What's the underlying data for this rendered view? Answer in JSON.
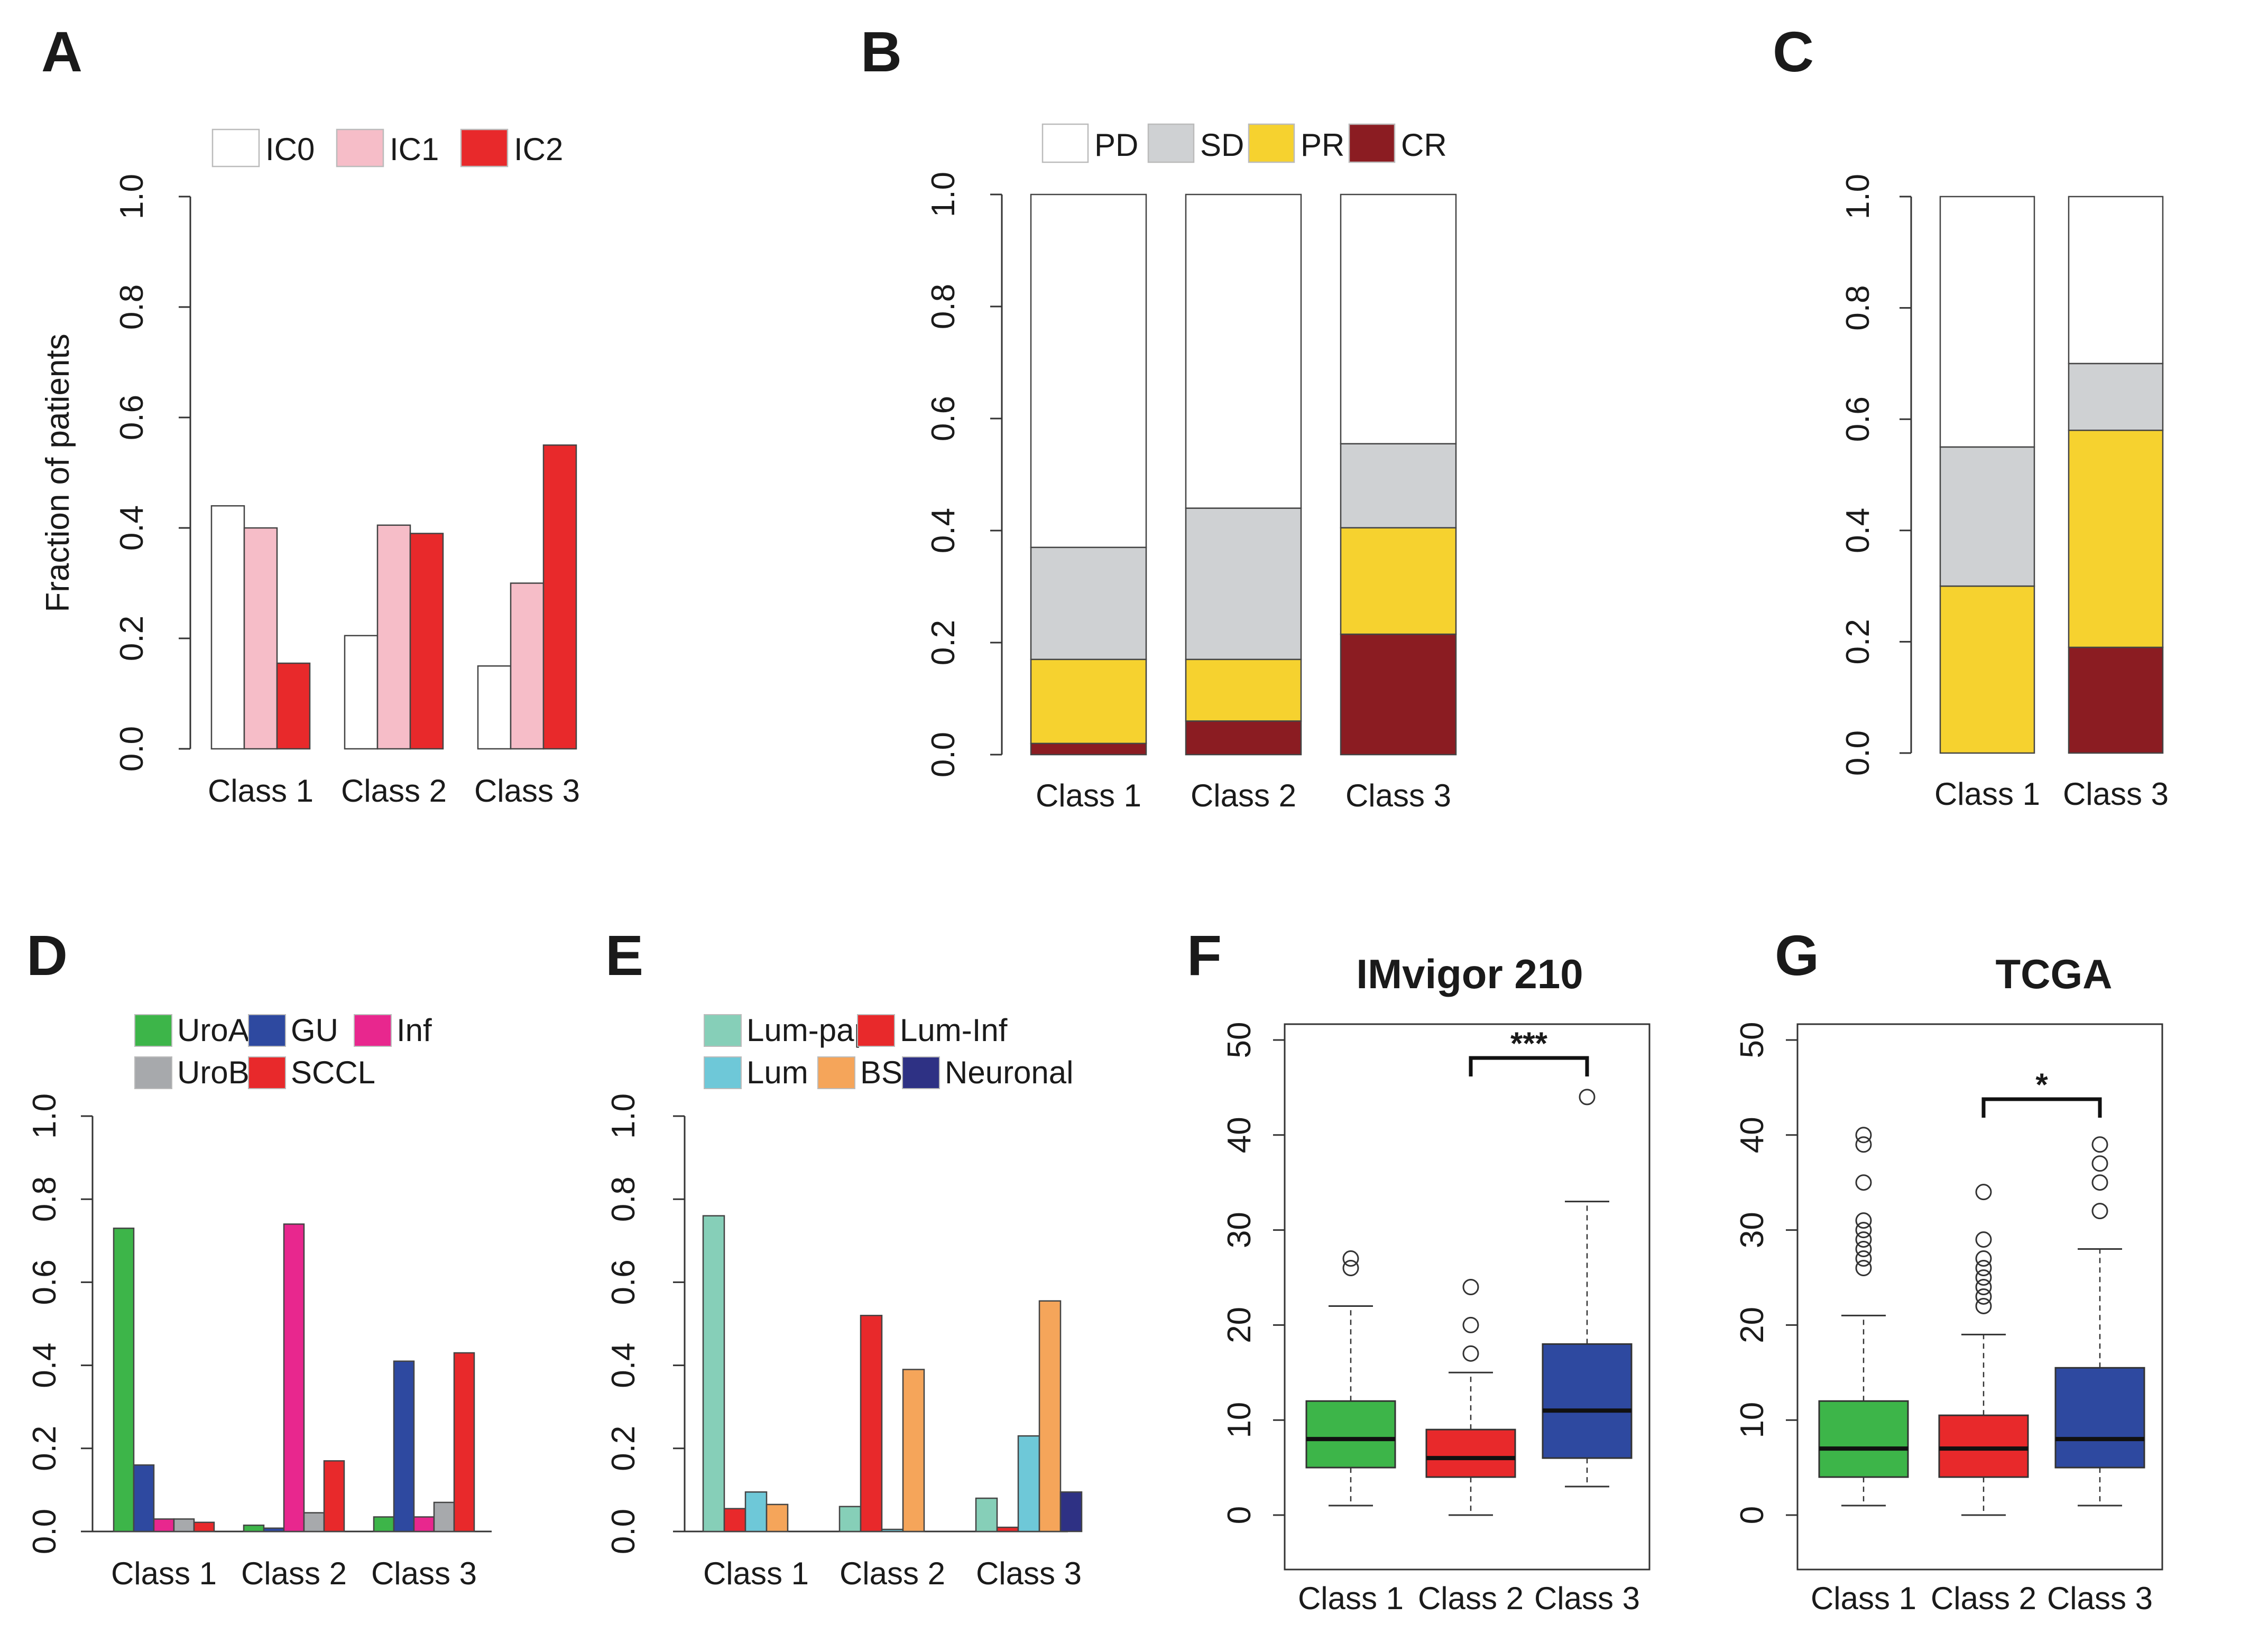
{
  "colors": {
    "IC0": "#ffffff",
    "IC1": "#f6bdc8",
    "IC2": "#e8292b",
    "PD": "#ffffff",
    "SD": "#cfd1d3",
    "PR": "#f6d22f",
    "CR": "#8b1c22",
    "UroA": "#3db549",
    "GU": "#2e49a0",
    "Inf": "#e8278e",
    "UroB": "#a7a9ac",
    "SCCL": "#e8292b",
    "Lum-pap": "#86cfb8",
    "Lum-Inf": "#e8292b",
    "Lum": "#6ec8d8",
    "BS": "#f5a55a",
    "Neuronal": "#2e3184",
    "Class 1": "#3db549",
    "Class 2": "#e8292b",
    "Class 3": "#2e49a0"
  },
  "chart_data": [
    {
      "panel": "A",
      "type": "bar",
      "ylabel": "Fraction of patients",
      "ylim": [
        0,
        1
      ],
      "yticks": [
        "0.0",
        "0.2",
        "0.4",
        "0.6",
        "0.8",
        "1.0"
      ],
      "categories": [
        "Class 1",
        "Class 2",
        "Class 3"
      ],
      "series": [
        {
          "name": "IC0",
          "values": [
            0.44,
            0.205,
            0.15
          ]
        },
        {
          "name": "IC1",
          "values": [
            0.4,
            0.405,
            0.3
          ]
        },
        {
          "name": "IC2",
          "values": [
            0.155,
            0.39,
            0.55
          ]
        }
      ]
    },
    {
      "panel": "B",
      "type": "bar",
      "stacked": true,
      "ylim": [
        0,
        1
      ],
      "yticks": [
        "0.0",
        "0.2",
        "0.4",
        "0.6",
        "0.8",
        "1.0"
      ],
      "categories": [
        "Class 1",
        "Class 2",
        "Class 3"
      ],
      "series": [
        {
          "name": "PD",
          "values": [
            0.63,
            0.56,
            0.445
          ]
        },
        {
          "name": "SD",
          "values": [
            0.2,
            0.27,
            0.15
          ]
        },
        {
          "name": "PR",
          "values": [
            0.15,
            0.11,
            0.19
          ]
        },
        {
          "name": "CR",
          "values": [
            0.02,
            0.06,
            0.215
          ]
        }
      ]
    },
    {
      "panel": "C",
      "type": "bar",
      "stacked": true,
      "ylim": [
        0,
        1
      ],
      "yticks": [
        "0.0",
        "0.2",
        "0.4",
        "0.6",
        "0.8",
        "1.0"
      ],
      "categories": [
        "Class 1",
        "Class 3"
      ],
      "series": [
        {
          "name": "PD",
          "values": [
            0.45,
            0.3
          ]
        },
        {
          "name": "SD",
          "values": [
            0.25,
            0.12
          ]
        },
        {
          "name": "PR",
          "values": [
            0.3,
            0.39
          ]
        },
        {
          "name": "CR",
          "values": [
            0.0,
            0.19
          ]
        }
      ]
    },
    {
      "panel": "D",
      "type": "bar",
      "ylim": [
        0,
        1
      ],
      "yticks": [
        "0.0",
        "0.2",
        "0.4",
        "0.6",
        "0.8",
        "1.0"
      ],
      "categories": [
        "Class 1",
        "Class 2",
        "Class 3"
      ],
      "series": [
        {
          "name": "UroA",
          "values": [
            0.73,
            0.015,
            0.035
          ]
        },
        {
          "name": "GU",
          "values": [
            0.16,
            0.008,
            0.41
          ]
        },
        {
          "name": "Inf",
          "values": [
            0.03,
            0.74,
            0.035
          ]
        },
        {
          "name": "UroB",
          "values": [
            0.03,
            0.045,
            0.07
          ]
        },
        {
          "name": "SCCL",
          "values": [
            0.022,
            0.17,
            0.43
          ]
        }
      ]
    },
    {
      "panel": "E",
      "type": "bar",
      "ylim": [
        0,
        1
      ],
      "yticks": [
        "0.0",
        "0.2",
        "0.4",
        "0.6",
        "0.8",
        "1.0"
      ],
      "categories": [
        "Class 1",
        "Class 2",
        "Class 3"
      ],
      "series": [
        {
          "name": "Lum-pap",
          "values": [
            0.76,
            0.06,
            0.08
          ]
        },
        {
          "name": "Lum-Inf",
          "values": [
            0.055,
            0.52,
            0.01
          ]
        },
        {
          "name": "Lum",
          "values": [
            0.095,
            0.005,
            0.23
          ]
        },
        {
          "name": "BS",
          "values": [
            0.065,
            0.39,
            0.555
          ]
        },
        {
          "name": "Neuronal",
          "values": [
            0.0,
            0.0,
            0.095
          ]
        }
      ]
    },
    {
      "panel": "F",
      "type": "box",
      "title": "IMvigor 210",
      "ylim": [
        0,
        50
      ],
      "yticks": [
        "0",
        "10",
        "20",
        "30",
        "40",
        "50"
      ],
      "categories": [
        "Class 1",
        "Class 2",
        "Class 3"
      ],
      "boxes": [
        {
          "name": "Class 1",
          "min": 1,
          "q1": 5,
          "median": 8,
          "q3": 12,
          "max": 22,
          "outliers": [
            26,
            27
          ]
        },
        {
          "name": "Class 2",
          "min": 0,
          "q1": 4,
          "median": 6,
          "q3": 9,
          "max": 15,
          "outliers": [
            17,
            20,
            24
          ]
        },
        {
          "name": "Class 3",
          "min": 3,
          "q1": 6,
          "median": 11,
          "q3": 18,
          "max": 33,
          "outliers": [
            44
          ]
        }
      ],
      "significance": {
        "between": [
          "Class 2",
          "Class 3"
        ],
        "label": "***"
      }
    },
    {
      "panel": "G",
      "type": "box",
      "title": "TCGA",
      "ylim": [
        0,
        50
      ],
      "yticks": [
        "0",
        "10",
        "20",
        "30",
        "40",
        "50"
      ],
      "categories": [
        "Class 1",
        "Class 2",
        "Class 3"
      ],
      "boxes": [
        {
          "name": "Class 1",
          "min": 1,
          "q1": 4,
          "median": 7,
          "q3": 12,
          "max": 21,
          "outliers": [
            26,
            27,
            28,
            29,
            30,
            31,
            35,
            39,
            40
          ]
        },
        {
          "name": "Class 2",
          "min": 0,
          "q1": 4,
          "median": 7,
          "q3": 10.5,
          "max": 19,
          "outliers": [
            22,
            23,
            24,
            25,
            26,
            27,
            29,
            34
          ]
        },
        {
          "name": "Class 3",
          "min": 1,
          "q1": 5,
          "median": 8,
          "q3": 15.5,
          "max": 28,
          "outliers": [
            32,
            35,
            37,
            39
          ]
        }
      ],
      "significance": {
        "between": [
          "Class 2",
          "Class 3"
        ],
        "label": "*"
      }
    }
  ],
  "legends": {
    "A": [
      "IC0",
      "IC1",
      "IC2"
    ],
    "B": [
      "PD",
      "SD",
      "PR",
      "CR"
    ],
    "D": [
      "UroA",
      "GU",
      "Inf",
      "UroB",
      "SCCL"
    ],
    "E": [
      "Lum-pap",
      "Lum-Inf",
      "Lum",
      "BS",
      "Neuronal"
    ]
  }
}
